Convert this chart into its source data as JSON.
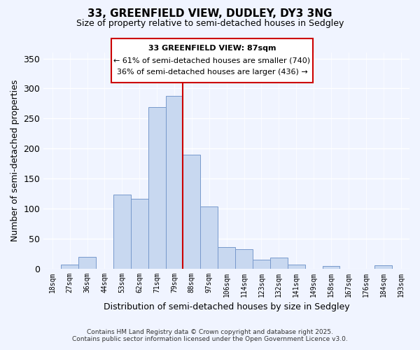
{
  "title": "33, GREENFIELD VIEW, DUDLEY, DY3 3NG",
  "subtitle": "Size of property relative to semi-detached houses in Sedgley",
  "xlabel": "Distribution of semi-detached houses by size in Sedgley",
  "ylabel": "Number of semi-detached properties",
  "bin_labels": [
    "18sqm",
    "27sqm",
    "36sqm",
    "44sqm",
    "53sqm",
    "62sqm",
    "71sqm",
    "79sqm",
    "88sqm",
    "97sqm",
    "106sqm",
    "114sqm",
    "123sqm",
    "132sqm",
    "141sqm",
    "149sqm",
    "158sqm",
    "167sqm",
    "176sqm",
    "184sqm",
    "193sqm"
  ],
  "bar_values": [
    0,
    6,
    19,
    0,
    123,
    116,
    269,
    288,
    190,
    103,
    36,
    32,
    15,
    18,
    6,
    0,
    4,
    0,
    0,
    5,
    0
  ],
  "bar_color": "#c8d8f0",
  "bar_edge_color": "#7799cc",
  "annotation_title": "33 GREENFIELD VIEW: 87sqm",
  "annotation_line1": "← 61% of semi-detached houses are smaller (740)",
  "annotation_line2": "36% of semi-detached houses are larger (436) →",
  "vline_color": "#cc0000",
  "ylim": [
    0,
    360
  ],
  "yticks": [
    0,
    50,
    100,
    150,
    200,
    250,
    300,
    350
  ],
  "footer_line1": "Contains HM Land Registry data © Crown copyright and database right 2025.",
  "footer_line2": "Contains public sector information licensed under the Open Government Licence v3.0.",
  "background_color": "#f0f4ff"
}
